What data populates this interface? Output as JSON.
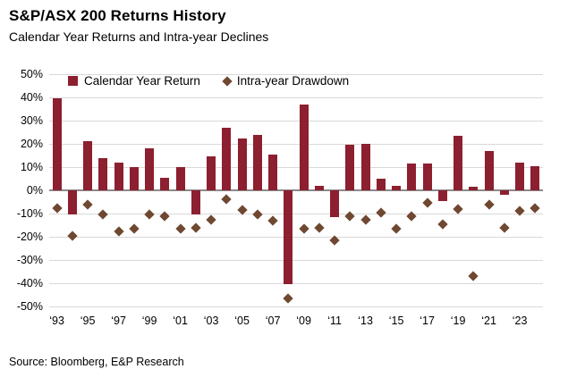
{
  "header": {
    "title": "S&P/ASX 200 Returns History",
    "subtitle": "Calendar Year Returns and Intra-year Declines"
  },
  "legend": {
    "items": [
      {
        "label": "Calendar Year Return",
        "marker": "square"
      },
      {
        "label": "Intra-year Drawdown",
        "marker": "diamond"
      }
    ]
  },
  "footer": {
    "source": "Source: Bloomberg, E&P Research"
  },
  "colors": {
    "bar": "#8c1f30",
    "diamond": "#6f4831",
    "gridline": "#d9d9d9",
    "zero_line": "#8a8a8a",
    "text": "#000000"
  },
  "chart_data": {
    "type": "bar",
    "title": "S&P/ASX 200 Returns History",
    "subtitle": "Calendar Year Returns and Intra-year Declines",
    "xlabel": "",
    "ylabel": "",
    "ylim": [
      -50,
      50
    ],
    "y_ticks": [
      50,
      40,
      30,
      20,
      10,
      0,
      -10,
      -20,
      -30,
      -40,
      -50
    ],
    "y_tick_labels": [
      "50%",
      "40%",
      "30%",
      "20%",
      "10%",
      "0%",
      "-10%",
      "-20%",
      "-30%",
      "-40%",
      "-50%"
    ],
    "grid": true,
    "legend_position": "top-inside",
    "categories": [
      1993,
      1994,
      1995,
      1996,
      1997,
      1998,
      1999,
      2000,
      2001,
      2002,
      2003,
      2004,
      2005,
      2006,
      2007,
      2008,
      2009,
      2010,
      2011,
      2012,
      2013,
      2014,
      2015,
      2016,
      2017,
      2018,
      2019,
      2020,
      2021,
      2022,
      2023,
      2024
    ],
    "x_tick_labels": [
      "‘93",
      "‘95",
      "‘97",
      "‘99",
      "‘01",
      "‘03",
      "‘05",
      "‘07",
      "‘09",
      "‘11",
      "‘13",
      "‘15",
      "‘17",
      "‘19",
      "‘21",
      "‘23"
    ],
    "x_tick_every": 2,
    "series": [
      {
        "name": "Calendar Year Return",
        "type": "bar",
        "values": [
          39.5,
          -10.5,
          21,
          14,
          12,
          10,
          18,
          5.5,
          10,
          -10.5,
          14.5,
          27,
          22.5,
          24,
          15.5,
          -40.5,
          37,
          2,
          -11.5,
          19.5,
          20,
          5,
          2,
          11.5,
          11.5,
          -4.5,
          23.5,
          1.5,
          17,
          -2,
          12,
          10.5
        ]
      },
      {
        "name": "Intra-year Drawdown",
        "type": "scatter",
        "marker": "diamond",
        "values": [
          -7.5,
          -19.5,
          -6,
          -10.5,
          -17.5,
          -16.5,
          -10.5,
          -11,
          -16.5,
          -16,
          -12.5,
          -4,
          -8.5,
          -10.5,
          -13,
          -46.5,
          -16.5,
          -16,
          -21.5,
          -11,
          -12.5,
          -9.5,
          -16.5,
          -11,
          -5.5,
          -14.5,
          -8,
          -37,
          -6,
          -16,
          -9,
          -7.5
        ]
      }
    ]
  }
}
